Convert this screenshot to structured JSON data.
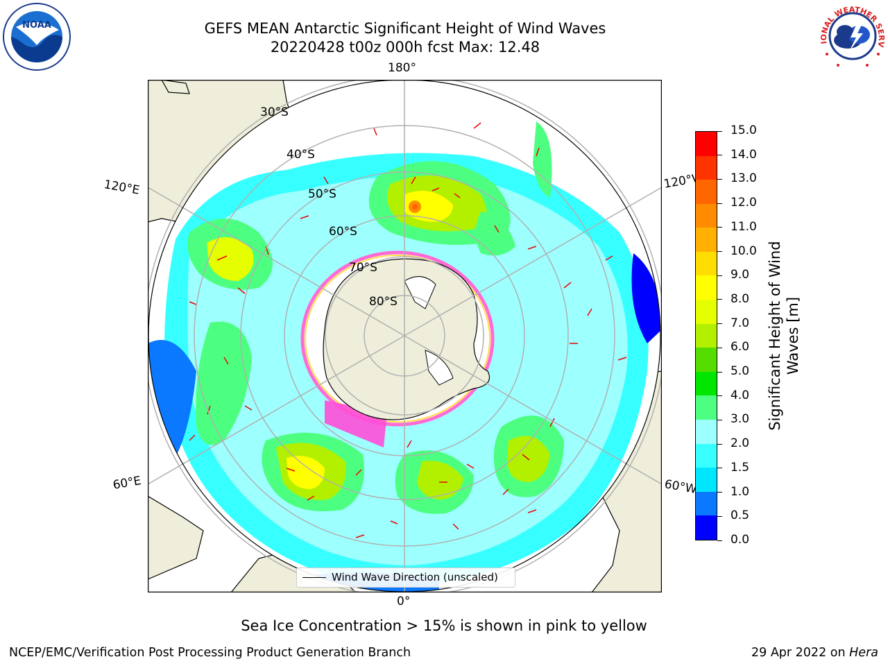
{
  "title": {
    "line1": "GEFS MEAN Antarctic Significant Height of Wind Waves",
    "line2": "20220428 t00z 000h fcst   Max: 12.48"
  },
  "map": {
    "projection": "south-polar-stereographic",
    "lon_labels": {
      "top": "180°",
      "bottom": "0°",
      "upper_left": "120°E",
      "upper_right": "120°W",
      "lower_left": "60°E",
      "lower_right": "60°W"
    },
    "lat_labels": [
      "30°S",
      "40°S",
      "50°S",
      "60°S",
      "70°S",
      "80°S"
    ],
    "land_color": "#efeedb",
    "legend_label": "Wind Wave Direction (unscaled)"
  },
  "colorbar": {
    "label": "Significant Height of Wind Waves [m]",
    "ticks": [
      "0.0",
      "0.5",
      "1.0",
      "1.5",
      "2.0",
      "3.0",
      "4.0",
      "5.0",
      "6.0",
      "7.0",
      "8.0",
      "9.0",
      "10.0",
      "11.0",
      "12.0",
      "13.0",
      "14.0",
      "15.0"
    ],
    "colors": [
      "#0000ff",
      "#0a78ff",
      "#00e6ff",
      "#37ffff",
      "#9effff",
      "#4dff80",
      "#00e600",
      "#55dd00",
      "#b2f000",
      "#e6ff00",
      "#ffff00",
      "#ffdd00",
      "#ffb000",
      "#ff8c00",
      "#ff6600",
      "#ff3300",
      "#ff0000"
    ]
  },
  "note": "Sea Ice Concentration > 15% is shown in pink to yellow",
  "footer": {
    "left": "NCEP/EMC/Verification Post Processing Product Generation Branch",
    "date": "29 Apr 2022 on ",
    "host": "Hera"
  },
  "logos": {
    "noaa_text": "NOAA",
    "nws_text": "NATIONAL WEATHER SERVICE"
  }
}
